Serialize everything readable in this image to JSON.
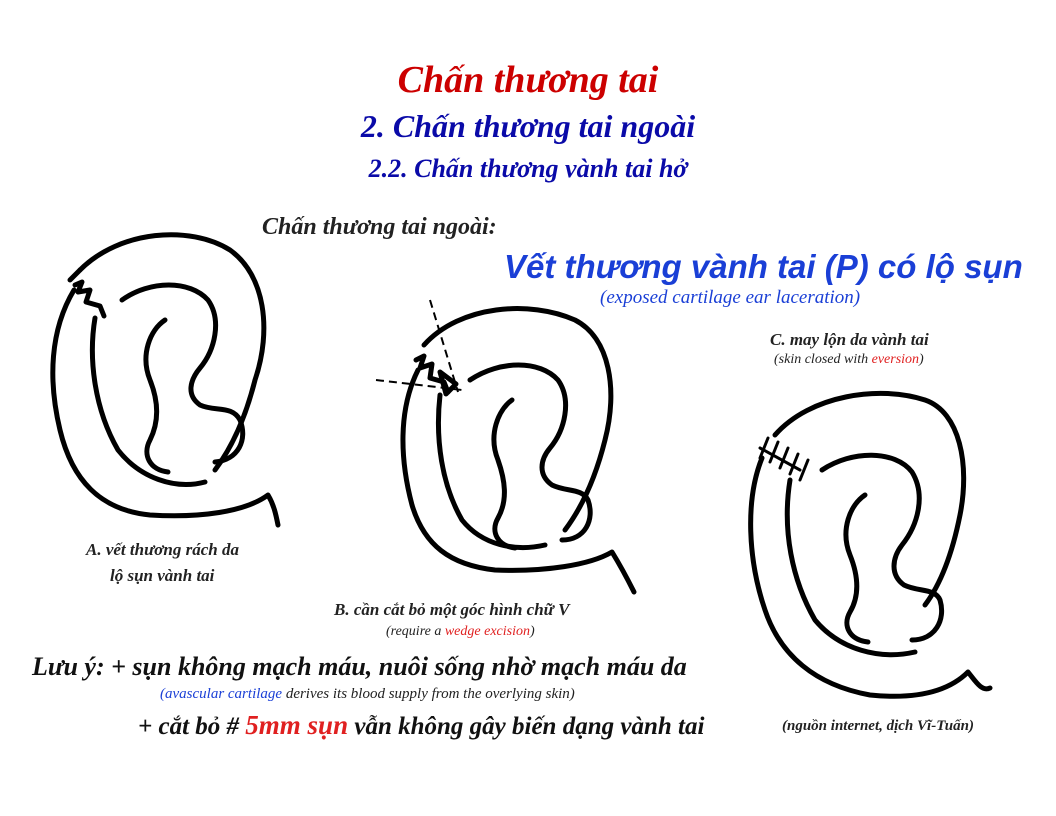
{
  "title": {
    "line1": "Chấn thương tai",
    "line2": "2. Chấn thương tai ngoài",
    "line3": "2.2. Chấn thương vành tai hở"
  },
  "subhead": "Chấn thương tai ngoài:",
  "main_heading": "Vết thương vành tai (P) có lộ sụn",
  "main_heading_en": "(exposed cartilage ear laceration)",
  "figure_a": {
    "caption_line1": "A. vết thương rách da",
    "caption_line2": "lộ sụn vành tai"
  },
  "figure_b": {
    "caption": "B. cần cắt bỏ một góc hình chữ V",
    "caption_en_prefix": "(require a ",
    "caption_en_highlight": "wedge excision",
    "caption_en_suffix": ")"
  },
  "figure_c": {
    "caption": "C. may lộn da vành tai",
    "caption_en_prefix": "(skin closed with ",
    "caption_en_highlight": "eversion",
    "caption_en_suffix": ")"
  },
  "note": {
    "line1": "Lưu ý: + sụn không mạch máu, nuôi sống nhờ mạch máu da",
    "line1_en_highlight": "(avascular cartilage",
    "line1_en_rest": " derives its blood supply from the overlying skin)",
    "line2_prefix": "+ cắt bỏ # ",
    "line2_highlight": "5mm sụn",
    "line2_suffix": " vẫn không gây biến dạng vành tai"
  },
  "source": "(nguồn internet, dịch Vĩ-Tuấn)",
  "colors": {
    "title_red": "#cc0000",
    "title_blue": "#0a0aa8",
    "heading_blue": "#1a3fd6",
    "highlight_red": "#e02020"
  }
}
